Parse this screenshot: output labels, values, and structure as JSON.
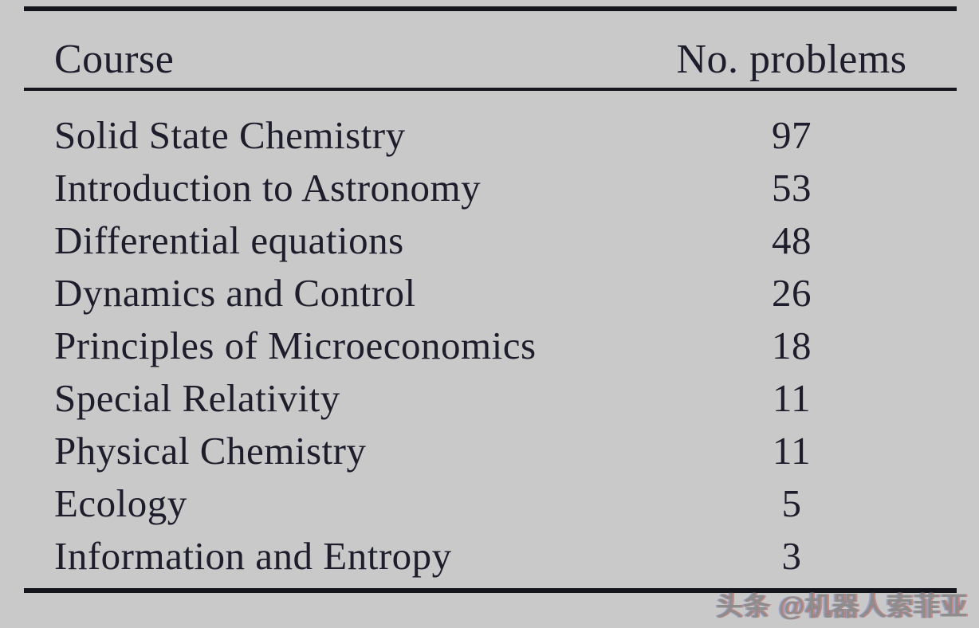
{
  "colors": {
    "background": "#c9c9c9",
    "text": "#1d1d2b",
    "rule": "#14141c",
    "watermark": "#8d8d8d"
  },
  "table": {
    "col_headers": {
      "course": "Course",
      "problems": "No. problems"
    },
    "rows": [
      {
        "course": "Solid State Chemistry",
        "problems": "97"
      },
      {
        "course": "Introduction to Astronomy",
        "problems": "53"
      },
      {
        "course": "Differential equations",
        "problems": "48"
      },
      {
        "course": "Dynamics and Control",
        "problems": "26"
      },
      {
        "course": "Principles of Microeconomics",
        "problems": "18"
      },
      {
        "course": "Special Relativity",
        "problems": "11"
      },
      {
        "course": "Physical Chemistry",
        "problems": "11"
      },
      {
        "course": "Ecology",
        "problems": "5"
      },
      {
        "course": "Information and Entropy",
        "problems": "3"
      }
    ]
  },
  "watermark": {
    "text": "头条 @机器人索菲亚"
  }
}
